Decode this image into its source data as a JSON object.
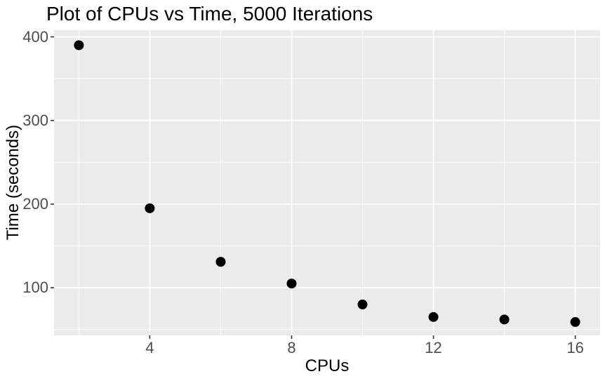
{
  "chart_data": {
    "type": "scatter",
    "title": "Plot of CPUs vs Time, 5000 Iterations",
    "xlabel": "CPUs",
    "ylabel": "Time (seconds)",
    "x": [
      2,
      4,
      6,
      8,
      10,
      12,
      14,
      16
    ],
    "y": [
      390,
      195,
      131,
      105,
      80,
      65,
      62,
      59
    ],
    "xlim": [
      1.3,
      16.7
    ],
    "ylim": [
      43,
      408
    ],
    "x_major_ticks": [
      4,
      8,
      12,
      16
    ],
    "y_major_ticks": [
      100,
      200,
      300,
      400
    ],
    "x_minor_ticks": [
      2,
      6,
      10,
      14
    ],
    "y_minor_ticks": [
      50,
      150,
      250,
      350
    ],
    "grid": true,
    "legend": "none",
    "style": {
      "figure_bg": "#FFFFFF",
      "panel_bg": "#EBEBEB",
      "grid_color": "#FFFFFF",
      "tick_label_color": "#4D4D4D",
      "tick_mark_color": "#333333",
      "point_color": "#000000",
      "point_radius": 7,
      "text_color": "#000000"
    }
  }
}
